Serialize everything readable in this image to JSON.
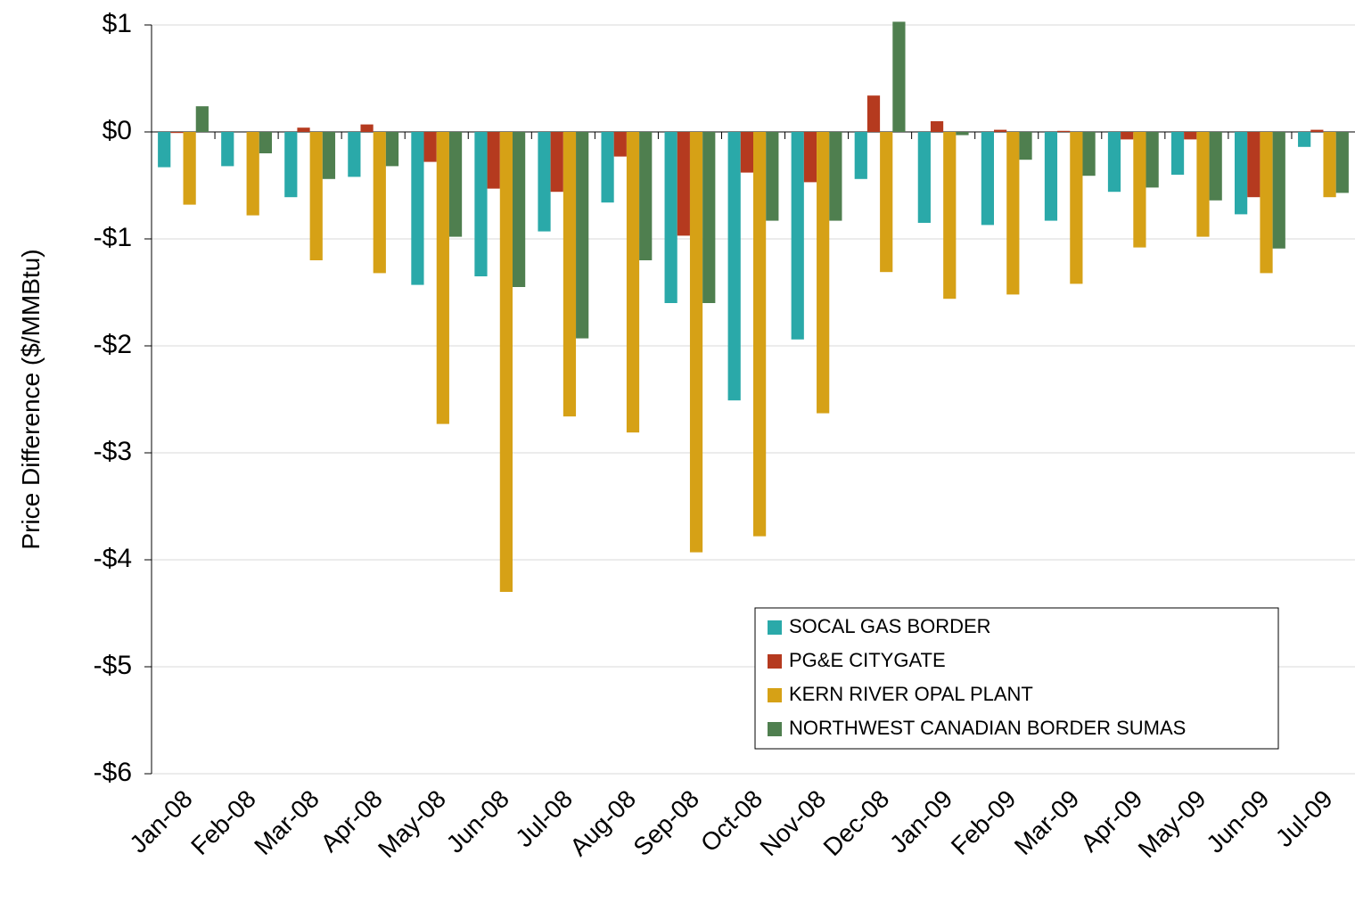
{
  "chart_data": {
    "type": "bar",
    "y_label": "Price Difference  ($/MMBtu)",
    "categories": [
      "Jan-08",
      "Feb-08",
      "Mar-08",
      "Apr-08",
      "May-08",
      "Jun-08",
      "Jul-08",
      "Aug-08",
      "Sep-08",
      "Oct-08",
      "Nov-08",
      "Dec-08",
      "Jan-09",
      "Feb-09",
      "Mar-09",
      "Apr-09",
      "May-09",
      "Jun-09",
      "Jul-09"
    ],
    "series": [
      {
        "name": "SOCAL GAS BORDER",
        "color": "#2aa9a9",
        "values": [
          -0.33,
          -0.32,
          -0.61,
          -0.42,
          -1.43,
          -1.35,
          -0.93,
          -0.66,
          -1.6,
          -2.51,
          -1.94,
          -0.44,
          -0.85,
          -0.87,
          -0.83,
          -0.56,
          -0.4,
          -0.77,
          -0.14
        ]
      },
      {
        "name": "PG&E CITYGATE",
        "color": "#b53a1f",
        "values": [
          -0.01,
          0,
          0.04,
          0.07,
          -0.28,
          -0.53,
          -0.56,
          -0.23,
          -0.97,
          -0.38,
          -0.47,
          0.34,
          0.1,
          0.02,
          0.01,
          -0.07,
          -0.07,
          -0.61,
          0.02
        ]
      },
      {
        "name": "KERN RIVER OPAL PLANT",
        "color": "#d6a116",
        "values": [
          -0.68,
          -0.78,
          -1.2,
          -1.32,
          -2.73,
          -4.3,
          -2.66,
          -2.81,
          -3.93,
          -3.78,
          -2.63,
          -1.31,
          -1.56,
          -1.52,
          -1.42,
          -1.08,
          -0.98,
          -1.32,
          -0.61
        ]
      },
      {
        "name": "NORTHWEST CANADIAN BORDER SUMAS",
        "color": "#4f7f4f",
        "values": [
          0.24,
          -0.2,
          -0.44,
          -0.32,
          -0.98,
          -1.45,
          -1.93,
          -1.2,
          -1.6,
          -0.83,
          -0.83,
          1.03,
          -0.03,
          -0.26,
          -0.41,
          -0.52,
          -0.64,
          -1.09,
          -0.57
        ]
      }
    ],
    "ylim": [
      -6,
      1
    ],
    "yticks": [
      {
        "value": 1,
        "label": "$1"
      },
      {
        "value": 0,
        "label": "$0"
      },
      {
        "value": -1,
        "label": "-$1"
      },
      {
        "value": -2,
        "label": "-$2"
      },
      {
        "value": -3,
        "label": "-$3"
      },
      {
        "value": -4,
        "label": "-$4"
      },
      {
        "value": -5,
        "label": "-$5"
      },
      {
        "value": -6,
        "label": "-$6"
      }
    ],
    "grid": true
  }
}
